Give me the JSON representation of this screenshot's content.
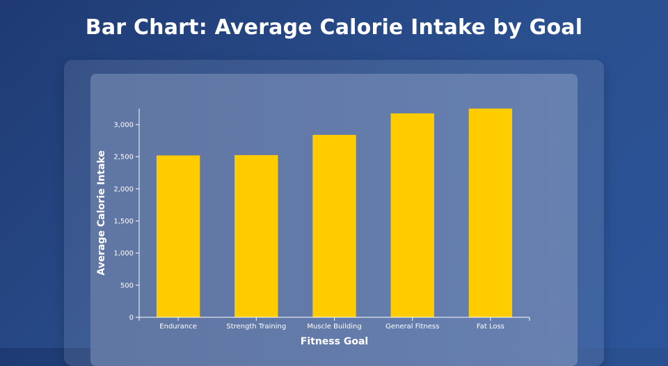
{
  "page": {
    "title": "Bar Chart: Average Calorie Intake by Goal"
  },
  "chart_data": {
    "type": "bar",
    "title": "Bar Chart: Average Calorie Intake by Goal",
    "categories": [
      "Endurance",
      "Strength Training",
      "Muscle Building",
      "General Fitness",
      "Fat Loss"
    ],
    "values": [
      2520,
      2525,
      2840,
      3175,
      3250
    ],
    "xlabel": "Fitness Goal",
    "ylabel": "Average Calorie Intake",
    "ylim": [
      0,
      3250
    ],
    "yticks": [
      0,
      500,
      1000,
      1500,
      2000,
      2500,
      3000
    ],
    "ytick_labels": [
      "0",
      "500",
      "1,000",
      "1,500",
      "2,000",
      "2,500",
      "3,000"
    ],
    "grid": false,
    "bar_color": "#ffcc00",
    "axis_color": "#ffffff"
  }
}
